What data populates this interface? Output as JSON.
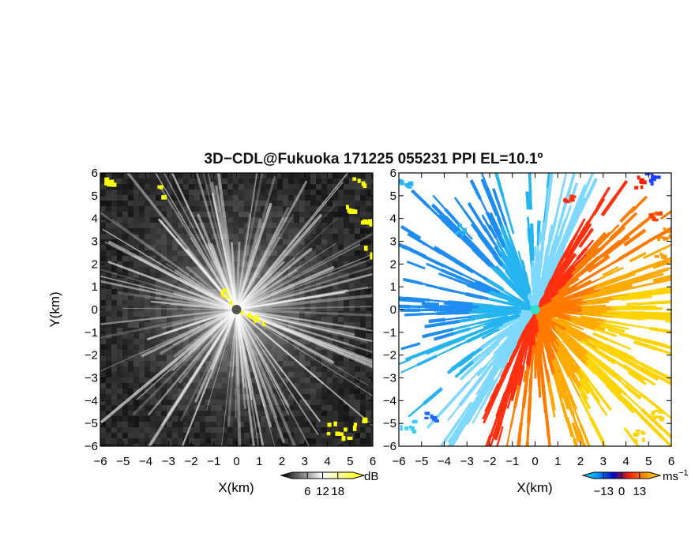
{
  "chart_data": {
    "type": "heatmap",
    "title": "3D−CDL@Fukuoka 171225 055231 PPI EL=10.1º",
    "panels": [
      {
        "name": "left",
        "xlabel": "X(km)",
        "ylabel": "Y(km)",
        "xlim": [
          -6,
          6
        ],
        "ylim": [
          -6,
          6
        ],
        "xticks": [
          "−6",
          "−5",
          "−4",
          "−3",
          "−2",
          "−1",
          "0",
          "1",
          "2",
          "3",
          "4",
          "5",
          "6"
        ],
        "yticks": [
          "−6",
          "−5",
          "−4",
          "−3",
          "−2",
          "−1",
          "0",
          "1",
          "2",
          "3",
          "4",
          "5",
          "6"
        ],
        "colorbar": {
          "unit": "dB",
          "ticks": [
            "6",
            "12",
            "18"
          ],
          "range": [
            0,
            24
          ],
          "colors": [
            "#000000",
            "#ffffff",
            "#ffff00"
          ]
        }
      },
      {
        "name": "right",
        "xlabel": "X(km)",
        "ylabel": "",
        "xlim": [
          -6,
          6
        ],
        "ylim": [
          -6,
          6
        ],
        "xticks": [
          "−6",
          "−5",
          "−4",
          "−3",
          "−2",
          "−1",
          "0",
          "1",
          "2",
          "3",
          "4",
          "5",
          "6"
        ],
        "yticks": [
          "−6",
          "−5",
          "−4",
          "−3",
          "−2",
          "−1",
          "0",
          "1",
          "2",
          "3",
          "4",
          "5",
          "6"
        ],
        "colorbar": {
          "unit": "ms",
          "unit_exp": "−1",
          "ticks": [
            "−13",
            "0",
            "13"
          ],
          "range": [
            -20,
            20
          ],
          "colors": [
            "#00e5e5",
            "#0090ff",
            "#0000c0",
            "#ff2000",
            "#ff8c00",
            "#ffe600"
          ]
        }
      }
    ]
  }
}
